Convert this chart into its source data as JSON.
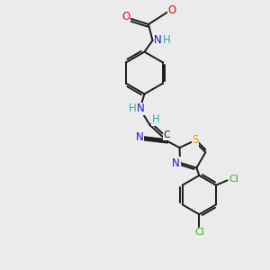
{
  "bg_color": "#ebebeb",
  "bond_color": "#1a1a1a",
  "colors": {
    "O": "#ff0000",
    "N": "#1a1acc",
    "S": "#ccaa00",
    "Cl": "#2db02d",
    "C": "#1a1a1a",
    "H": "#33aaaa"
  },
  "lw": 1.4
}
